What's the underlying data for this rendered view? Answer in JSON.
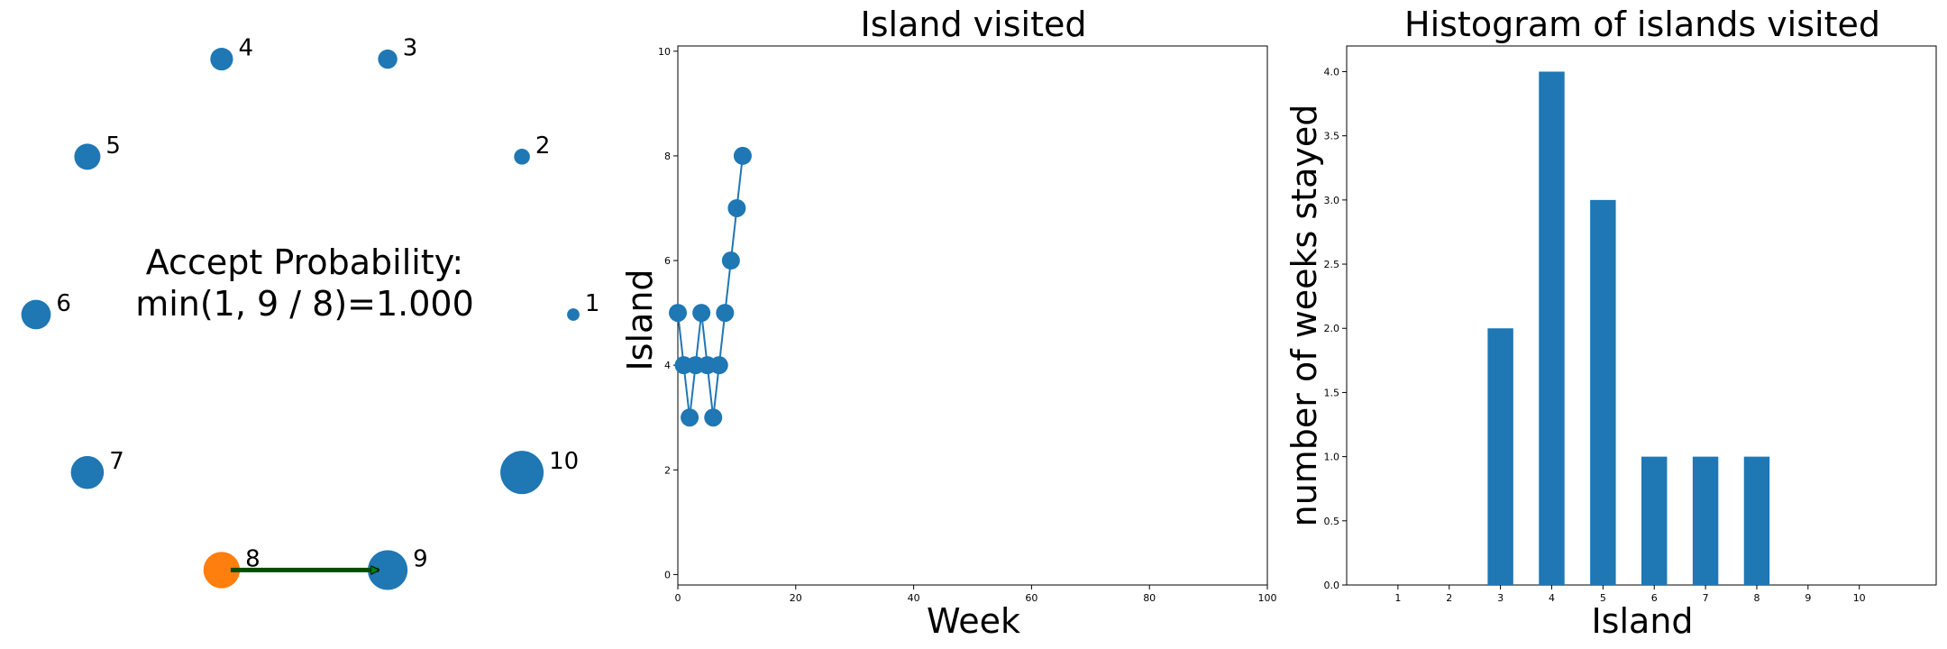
{
  "colors": {
    "island": "#1f77b4",
    "current_island": "#ff7f0e",
    "arrow_fill": "#008000",
    "arrow_edge": "#000000",
    "bar": "#1f77b4",
    "line": "#1f77b4"
  },
  "islands_panel": {
    "accept_text_line1": "Accept Probability:",
    "accept_text_line2": "min(1, 9 / 8)=1.000",
    "current_island": "8",
    "proposed_island": "9"
  },
  "chart_data": [
    {
      "type": "scatter",
      "description_source": "island ring; marker size grows with island number",
      "points": [
        {
          "label": "1",
          "population": 1
        },
        {
          "label": "2",
          "population": 2
        },
        {
          "label": "3",
          "population": 3
        },
        {
          "label": "4",
          "population": 4
        },
        {
          "label": "5",
          "population": 5
        },
        {
          "label": "6",
          "population": 6
        },
        {
          "label": "7",
          "population": 7
        },
        {
          "label": "8",
          "population": 8
        },
        {
          "label": "9",
          "population": 9
        },
        {
          "label": "10",
          "population": 10
        }
      ],
      "current": "8",
      "proposed": "9",
      "arrow": {
        "from": "8",
        "to": "9"
      }
    },
    {
      "type": "line",
      "title": "Island visited",
      "xlabel": "Week",
      "ylabel": "Island",
      "xlim": [
        0,
        100
      ],
      "ylim": [
        -0.2,
        10.1
      ],
      "x_ticks": [
        "0",
        "20",
        "40",
        "60",
        "80",
        "100"
      ],
      "y_ticks": [
        "0",
        "2",
        "4",
        "6",
        "8",
        "10"
      ],
      "markers": true,
      "series": [
        {
          "x": [
            0,
            1,
            2,
            3,
            4,
            5,
            6,
            7,
            8,
            9,
            10,
            11
          ],
          "values": [
            5,
            4,
            3,
            4,
            5,
            4,
            3,
            4,
            5,
            6,
            7,
            8
          ]
        }
      ]
    },
    {
      "type": "bar",
      "title": "Histogram of islands visited",
      "xlabel": "Island",
      "ylabel": "number of weeks stayed",
      "categories": [
        "1",
        "2",
        "3",
        "4",
        "5",
        "6",
        "7",
        "8",
        "9",
        "10"
      ],
      "values": [
        0,
        0,
        2,
        4,
        3,
        1,
        1,
        1,
        0,
        0
      ],
      "ylim": [
        0,
        4.2
      ],
      "y_ticks": [
        "0.0",
        "0.5",
        "1.0",
        "1.5",
        "2.0",
        "2.5",
        "3.0",
        "3.5",
        "4.0"
      ]
    }
  ]
}
